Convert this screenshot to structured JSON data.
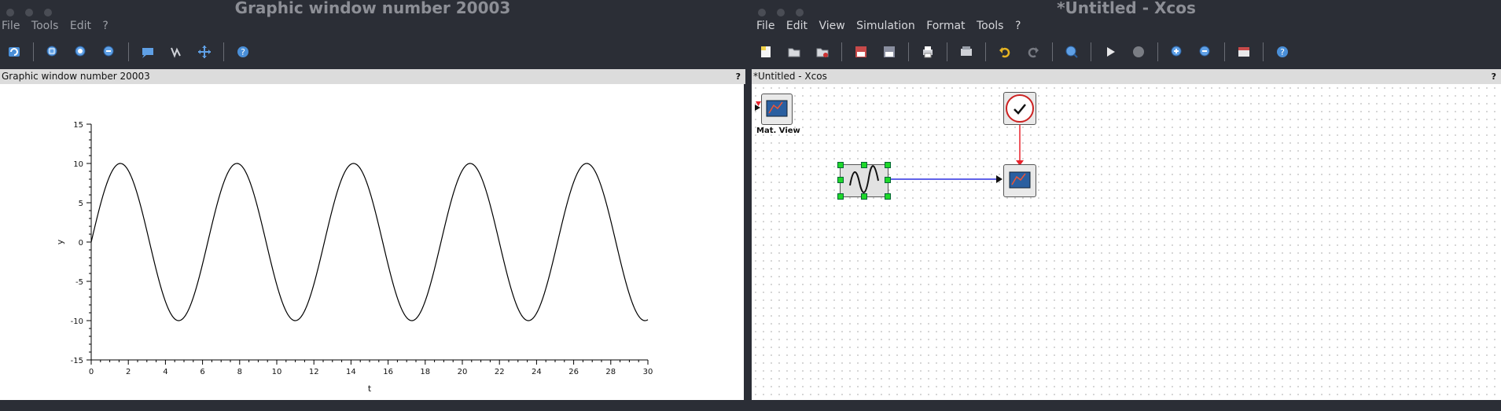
{
  "left_window": {
    "title": "Graphic window number 20003",
    "menu": [
      "File",
      "Tools",
      "Edit",
      "?"
    ],
    "toolbar_icons": [
      "rotate-icon",
      "zoom-region-icon",
      "zoom-in-icon",
      "zoom-out-icon",
      "datatip-icon",
      "edit-curve-icon",
      "pan-icon",
      "help-icon"
    ],
    "subheader": "Graphic window number 20003",
    "subheader_help": "?"
  },
  "right_window": {
    "title": "*Untitled - Xcos",
    "menu": [
      "File",
      "Edit",
      "View",
      "Simulation",
      "Format",
      "Tools",
      "?"
    ],
    "subheader": "*Untitled - Xcos",
    "subheader_help": "?",
    "blocks": {
      "mat_view_label": "Mat. View"
    }
  },
  "chart_data": {
    "type": "line",
    "xlabel": "t",
    "ylabel": "y",
    "xlim": [
      0,
      30
    ],
    "ylim": [
      -15,
      15
    ],
    "xticks": [
      0,
      2,
      4,
      6,
      8,
      10,
      12,
      14,
      16,
      18,
      20,
      22,
      24,
      26,
      28,
      30
    ],
    "yticks": [
      -15,
      -10,
      -5,
      0,
      5,
      10,
      15
    ],
    "series": [
      {
        "function": "10*sin(t)",
        "amplitude": 10,
        "frequency_rad_per_unit": 1,
        "x_range": [
          0,
          30
        ],
        "color": "#000000"
      }
    ],
    "grid": false
  }
}
